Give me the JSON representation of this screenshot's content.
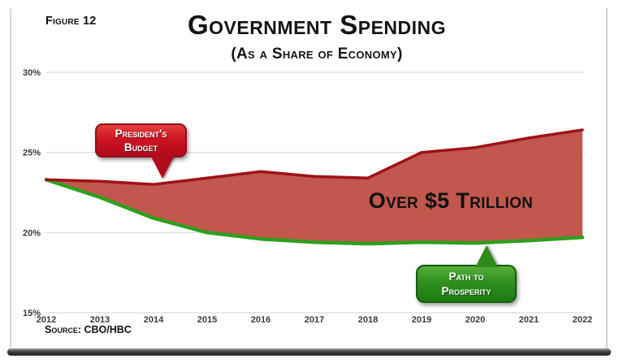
{
  "frame": {
    "figure_label": "Figure 12",
    "source_label": "Source:",
    "source_value": "CBO/HBC"
  },
  "chart_data": {
    "type": "area",
    "title": "Government Spending",
    "subtitle": "(As a Share of Economy)",
    "x": [
      2012,
      2013,
      2014,
      2015,
      2016,
      2017,
      2018,
      2019,
      2020,
      2021,
      2022
    ],
    "xlabel": "",
    "ylabel": "",
    "ylim": [
      15,
      30
    ],
    "grid": true,
    "legend_position": "none",
    "yticks": [
      {
        "value": 30,
        "label": "30%"
      },
      {
        "value": 25,
        "label": "25%"
      },
      {
        "value": 20,
        "label": "20%"
      },
      {
        "value": 15,
        "label": "15%"
      }
    ],
    "series": [
      {
        "name": "President's Budget",
        "color": "#a01218",
        "values": [
          23.3,
          23.2,
          23.0,
          23.4,
          23.8,
          23.5,
          23.4,
          25.0,
          25.3,
          25.9,
          26.4
        ]
      },
      {
        "name": "Path to Prosperity",
        "color": "#2f9e1e",
        "values": [
          23.3,
          22.2,
          20.9,
          20.0,
          19.6,
          19.4,
          19.3,
          19.4,
          19.35,
          19.5,
          19.7
        ]
      }
    ],
    "fill_between_color": "#c1574d",
    "area_annotation": "Over $5 Trillion"
  },
  "callouts": {
    "presidents_budget": {
      "line1": "President's",
      "line2": "Budget",
      "color": "#c00f1e",
      "points_to_year": 2014
    },
    "path_to_prosperity": {
      "line1": "Path to",
      "line2": "Prosperity",
      "color": "#2e8c1a",
      "points_to_year": 2020
    }
  }
}
